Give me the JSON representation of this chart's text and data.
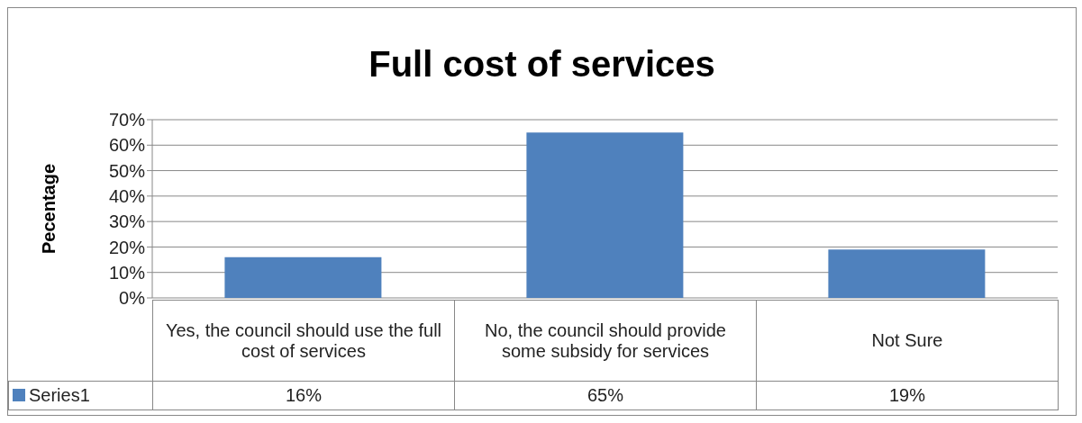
{
  "chart_data": {
    "type": "bar",
    "title": "Full cost of services",
    "ylabel": "Pecentage",
    "categories": [
      "Yes, the council should use the full cost of services",
      "No, the council should provide some subsidy for services",
      "Not Sure"
    ],
    "series": [
      {
        "name": "Series1",
        "color": "#4f81bd",
        "values": [
          16,
          65,
          19
        ],
        "value_labels": [
          "16%",
          "65%",
          "19%"
        ]
      }
    ],
    "ylim": [
      0,
      70
    ],
    "yticks": [
      {
        "value": 0,
        "label": "0%"
      },
      {
        "value": 10,
        "label": "10%"
      },
      {
        "value": 20,
        "label": "20%"
      },
      {
        "value": 30,
        "label": "30%"
      },
      {
        "value": 40,
        "label": "40%"
      },
      {
        "value": 50,
        "label": "50%"
      },
      {
        "value": 60,
        "label": "60%"
      },
      {
        "value": 70,
        "label": "70%"
      }
    ],
    "grid": "y",
    "legend": "bottom"
  }
}
